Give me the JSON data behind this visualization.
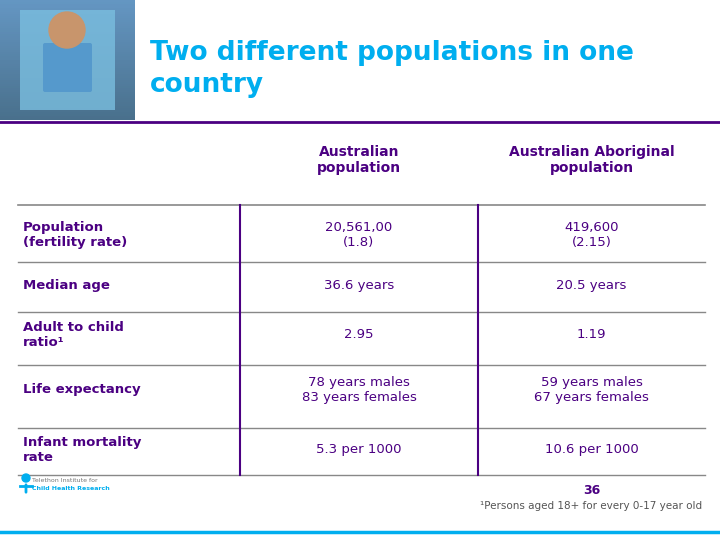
{
  "title_line1": "Two different populations in one",
  "title_line2": "country",
  "title_color": "#00AEEF",
  "header_color": "#4B0082",
  "row_label_color": "#4B0082",
  "cell_color": "#4B0082",
  "bg_color": "#FFFFFF",
  "col_headers": [
    "Australian\npopulation",
    "Australian Aboriginal\npopulation"
  ],
  "row_labels": [
    "Population\n(fertility rate)",
    "Median age",
    "Adult to child\nratio¹",
    "Life expectancy",
    "Infant mortality\nrate"
  ],
  "col1_values": [
    "20,561,00\n(1.8)",
    "36.6 years",
    "2.95",
    "78 years males\n83 years females",
    "5.3 per 1000"
  ],
  "col2_values": [
    "419,600\n(2.15)",
    "20.5 years",
    "1.19",
    "59 years males\n67 years females",
    "10.6 per 1000"
  ],
  "footnote_number": "36",
  "footnote_text": "¹Persons aged 18+ for every 0-17 year old",
  "separator_color": "#4B0082",
  "divider_color": "#4B0082",
  "line_color": "#888888",
  "purple_dark": "#4B0082",
  "teal_color": "#00AEEF",
  "photo_bg": "#6BAEC6",
  "header_sep_color": "#4B0082",
  "logo_text_color": "#00AEEF",
  "logo_body_color": "#00AEEF"
}
